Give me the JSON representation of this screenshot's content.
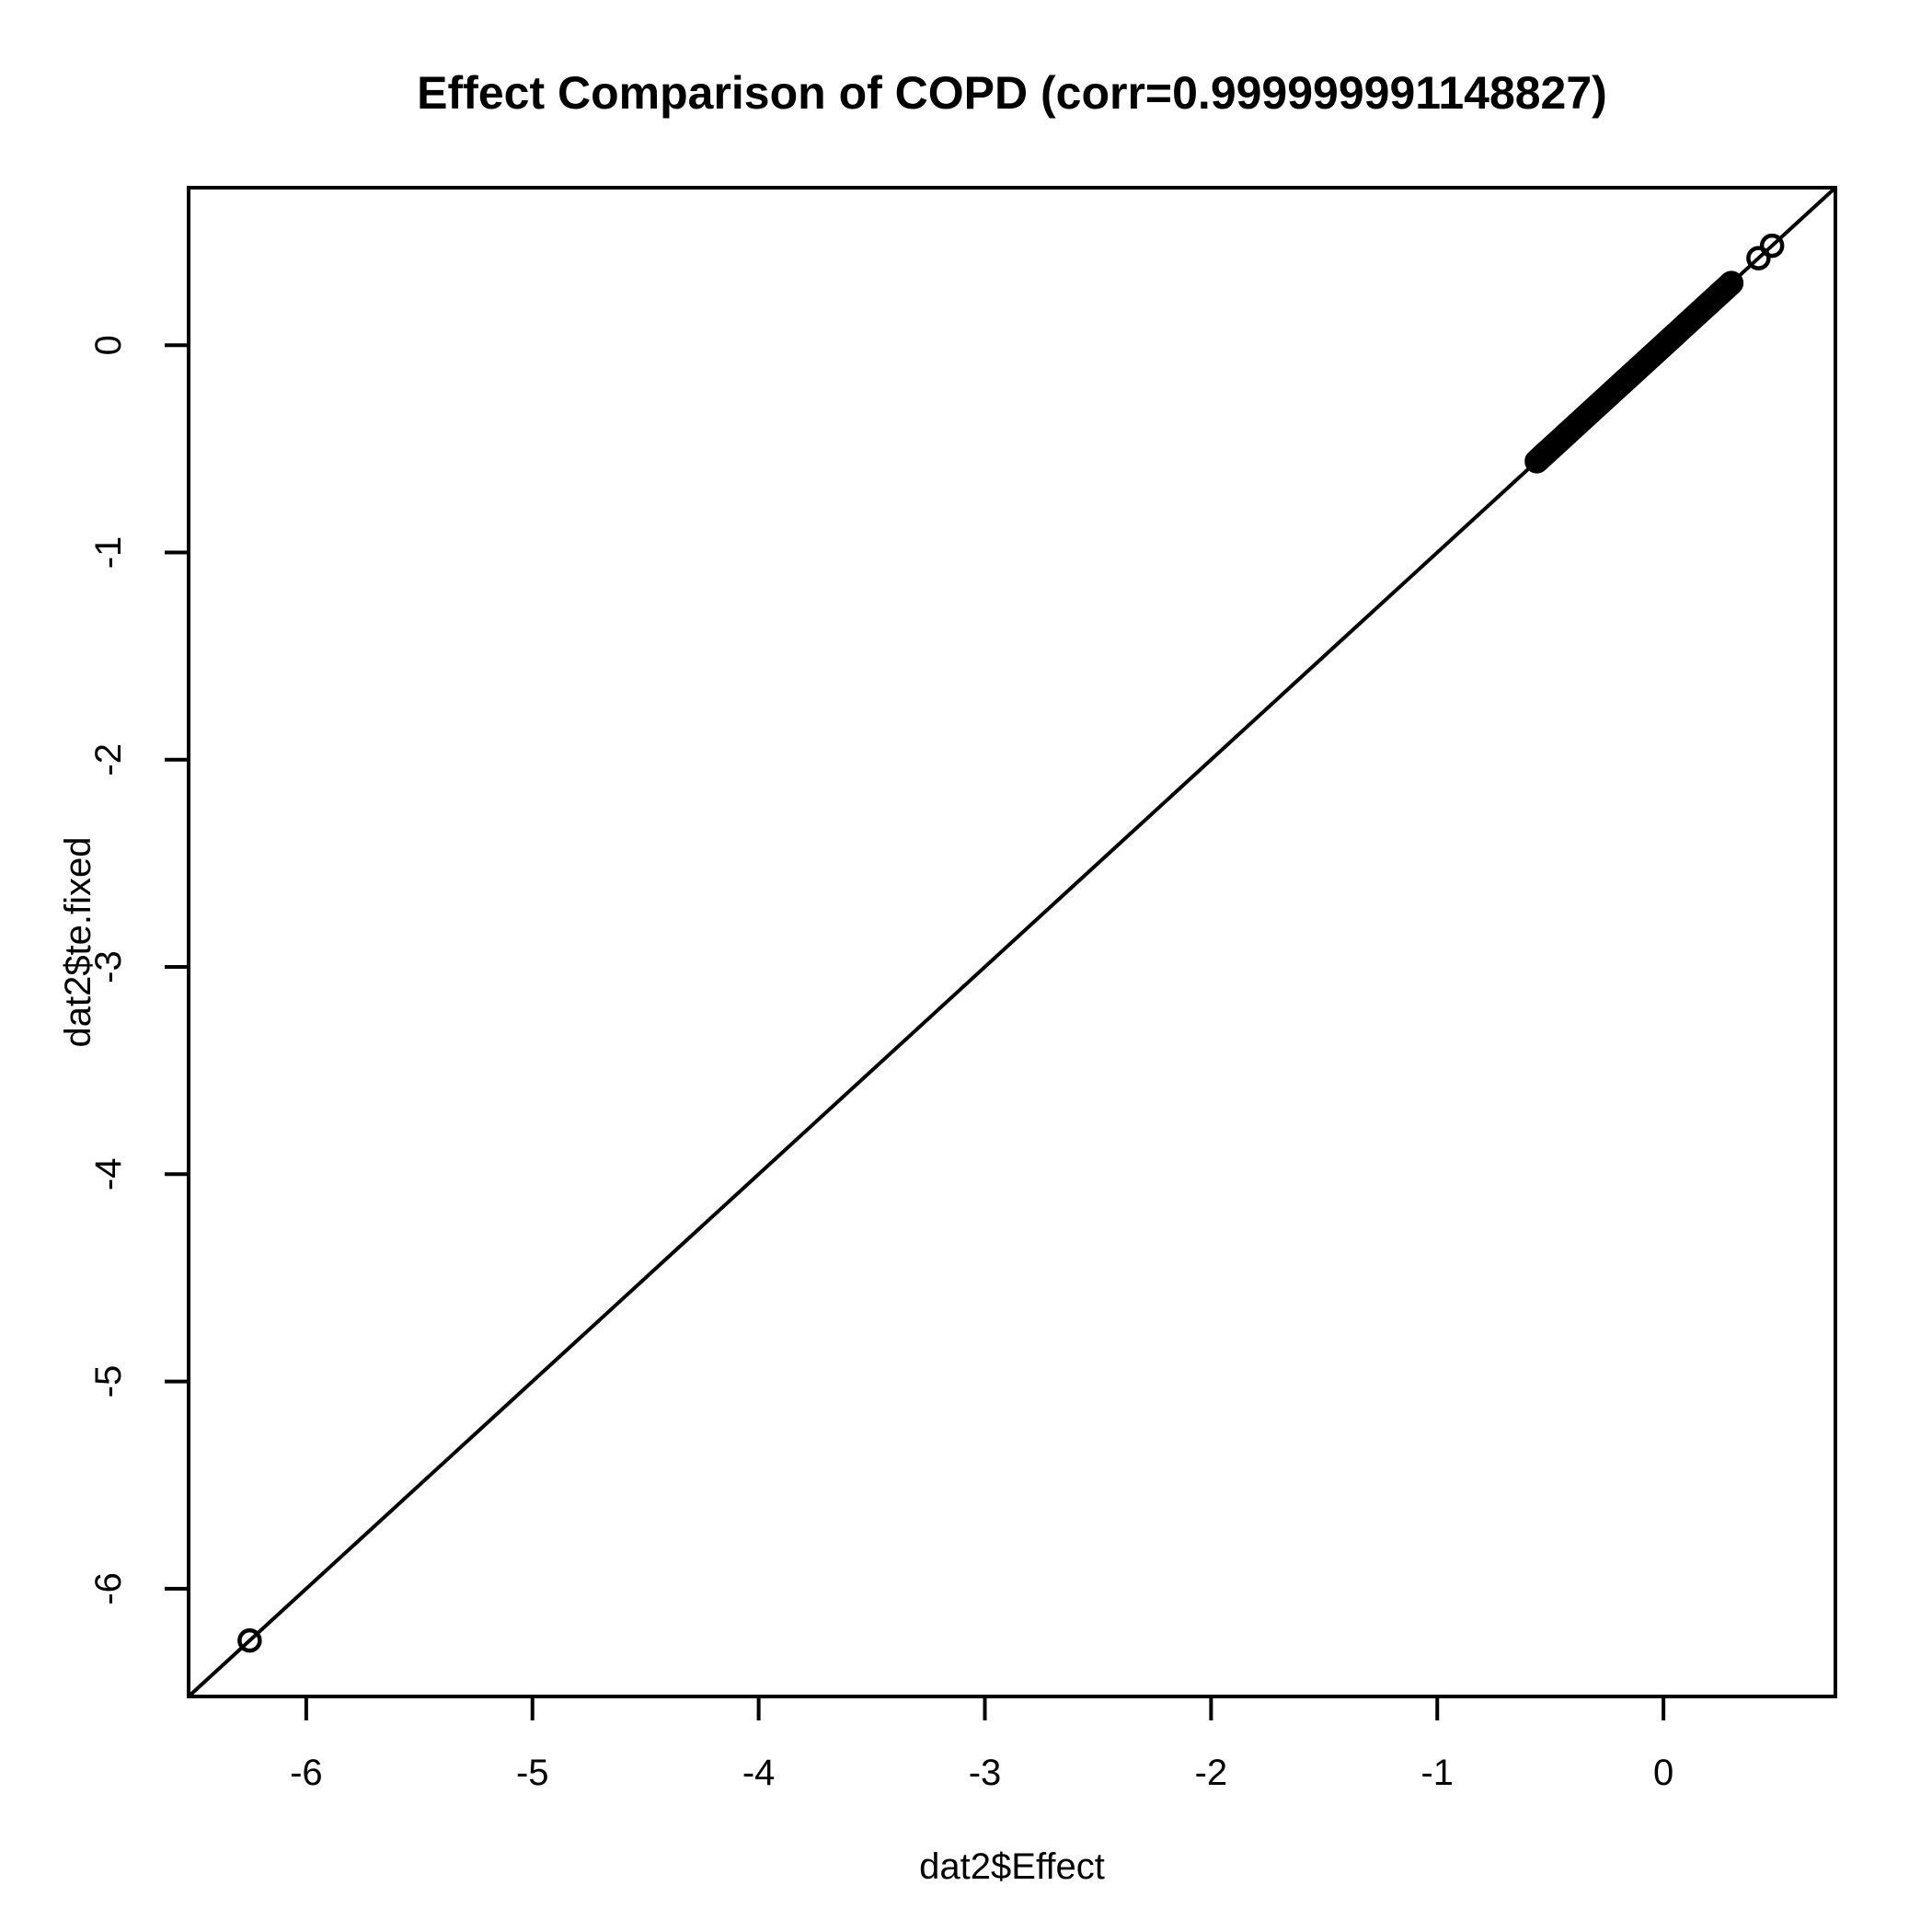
{
  "figure": {
    "background": "#ffffff",
    "foreground": "#000000"
  },
  "chart_data": {
    "type": "scatter",
    "title": "Effect Comparison of COPD (corr=0.999999991148827)",
    "xlabel": "dat2$Effect",
    "ylabel": "dat2$te.fixed",
    "xlim": [
      -6.52,
      0.76
    ],
    "ylim": [
      -6.52,
      0.76
    ],
    "grid": false,
    "legend": null,
    "xticks": {
      "values": [
        -6,
        -5,
        -4,
        -3,
        -2,
        -1,
        0
      ],
      "labels": [
        "-6",
        "-5",
        "-4",
        "-3",
        "-2",
        "-1",
        "0"
      ]
    },
    "yticks": {
      "values": [
        -6,
        -5,
        -4,
        -3,
        -2,
        -1,
        0
      ],
      "labels": [
        "-6",
        "-5",
        "-4",
        "-3",
        "-2",
        "-1",
        "0"
      ]
    },
    "identity_line": {
      "slope": 1,
      "intercept": 0
    },
    "marker": {
      "shape": "open-circle",
      "radius_px": 11,
      "stroke_px": 4.5,
      "color": "#000000"
    },
    "points": [
      {
        "x": -6.25,
        "y": -6.25
      },
      {
        "x": 0.42,
        "y": 0.42
      },
      {
        "x": 0.48,
        "y": 0.48
      }
    ],
    "dense_cluster": {
      "description": "solid band of heavily overlapping points lying on y=x",
      "min": -0.56,
      "max": 0.3,
      "approx_count": 130
    }
  }
}
